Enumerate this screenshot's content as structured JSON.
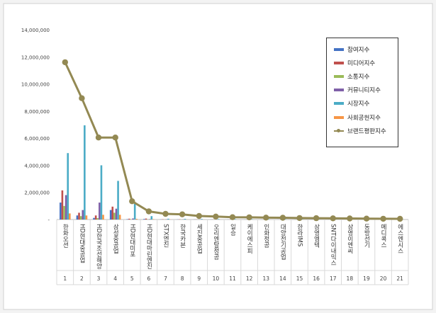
{
  "chart_data": {
    "type": "bar+line",
    "y_ticks": [
      "-",
      "2,000,000",
      "4,000,000",
      "6,000,000",
      "8,000,000",
      "10,000,000",
      "12,000,000",
      "14,000,000"
    ],
    "ylim": [
      0,
      14000000
    ],
    "categories": [
      "한화오션",
      "HD현대중공업",
      "HD한국조선해양",
      "삼성중공업",
      "HD현대미포",
      "HD현대마린엔진",
      "STX엔진",
      "한국카본",
      "세진중공업",
      "오리엔탈정공",
      "일승",
      "케이에스피",
      "인화정공",
      "대양전기공업",
      "한라IMS",
      "삼영엠텍",
      "SNT다이내믹스",
      "삼영이엔씨",
      "동방선기",
      "메디콕스",
      "에스엔시스"
    ],
    "ranks": [
      "1",
      "2",
      "3",
      "4",
      "5",
      "6",
      "7",
      "8",
      "9",
      "10",
      "11",
      "12",
      "13",
      "14",
      "15",
      "16",
      "17",
      "18",
      "19",
      "20",
      "21"
    ],
    "series": [
      {
        "name": "참여지수",
        "color": "#4472c4",
        "kind": "bar",
        "values": [
          1250000,
          300000,
          120000,
          700000,
          30000,
          40000,
          10000,
          10000,
          8000,
          6000,
          5000,
          5000,
          4000,
          4000,
          3000,
          3000,
          3000,
          2000,
          2000,
          2000,
          2000
        ]
      },
      {
        "name": "미디어지수",
        "color": "#c0504d",
        "kind": "bar",
        "values": [
          2150000,
          500000,
          300000,
          950000,
          60000,
          70000,
          20000,
          15000,
          10000,
          8000,
          6000,
          6000,
          5000,
          5000,
          4000,
          4000,
          4000,
          3000,
          3000,
          3000,
          3000
        ]
      },
      {
        "name": "소통지수",
        "color": "#9bbb59",
        "kind": "bar",
        "values": [
          1000000,
          250000,
          100000,
          500000,
          20000,
          20000,
          10000,
          8000,
          6000,
          5000,
          4000,
          4000,
          3000,
          3000,
          3000,
          2000,
          2000,
          2000,
          2000,
          2000,
          2000
        ]
      },
      {
        "name": "커뮤니티지수",
        "color": "#7f60a8",
        "kind": "bar",
        "values": [
          1800000,
          700000,
          1250000,
          800000,
          80000,
          30000,
          20000,
          15000,
          10000,
          8000,
          6000,
          6000,
          5000,
          5000,
          4000,
          4000,
          4000,
          3000,
          3000,
          3000,
          3000
        ]
      },
      {
        "name": "시장지수",
        "color": "#4bacc6",
        "kind": "bar",
        "values": [
          4900000,
          6950000,
          4000000,
          2850000,
          1150000,
          250000,
          60000,
          50000,
          40000,
          35000,
          30000,
          28000,
          26000,
          24000,
          22000,
          20000,
          18000,
          16000,
          15000,
          14000,
          13000
        ]
      },
      {
        "name": "사회공헌지수",
        "color": "#f79646",
        "kind": "bar",
        "values": [
          450000,
          300000,
          350000,
          350000,
          50000,
          30000,
          10000,
          8000,
          6000,
          5000,
          4000,
          4000,
          3000,
          3000,
          3000,
          2000,
          2000,
          2000,
          2000,
          2000,
          2000
        ]
      },
      {
        "name": "브랜드평판지수",
        "color": "#938953",
        "kind": "line",
        "values": [
          11600000,
          8950000,
          6050000,
          6050000,
          1350000,
          600000,
          420000,
          380000,
          260000,
          220000,
          170000,
          160000,
          140000,
          130000,
          110000,
          100000,
          90000,
          80000,
          70000,
          60000,
          50000
        ]
      }
    ],
    "legend_position": "right",
    "grid": false
  }
}
